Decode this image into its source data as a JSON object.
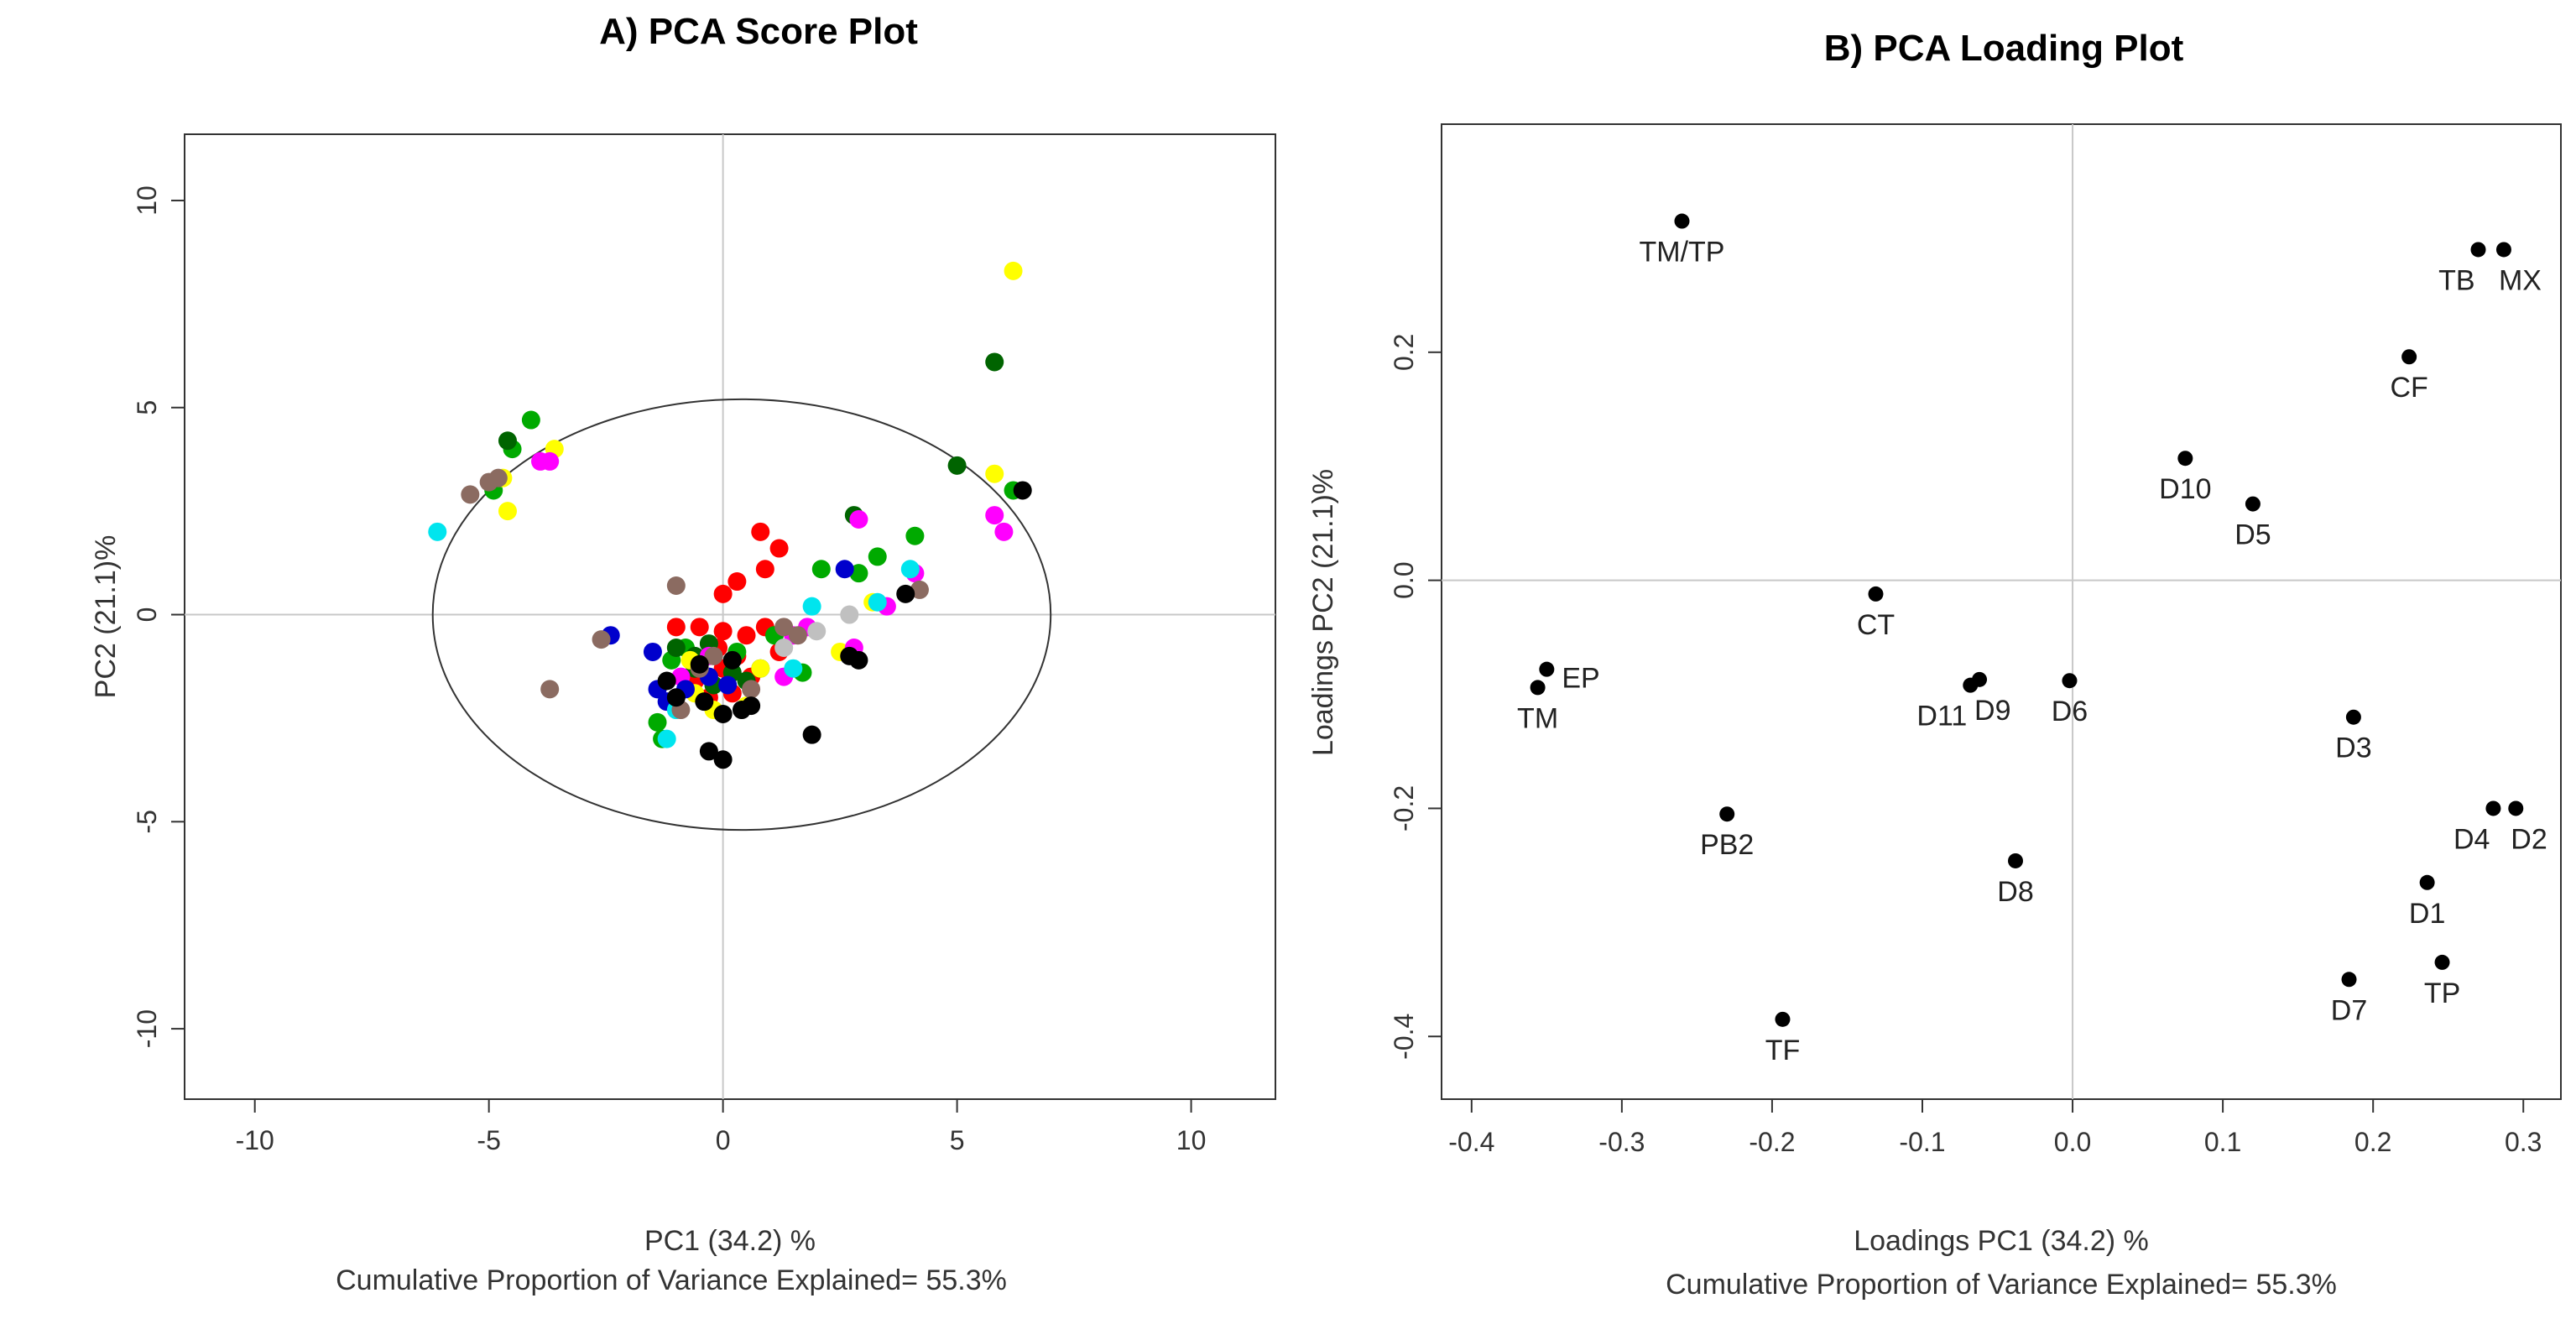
{
  "chart_data": [
    {
      "type": "scatter",
      "title": "A) PCA Score Plot",
      "xlabel": "PC1  (34.2) %",
      "ylabel": "PC2  (21.1)%",
      "caption": "Cumulative  Proportion  of Variance Explained=  55.3%",
      "xlim": [
        -11.5,
        11.8
      ],
      "ylim": [
        -11.7,
        11.6
      ],
      "xticks": [
        -10,
        -5,
        0,
        5,
        10
      ],
      "yticks": [
        -10,
        -5,
        0,
        5,
        10
      ],
      "xtick_labels": [
        "-10",
        "-5",
        "0",
        "5",
        "10"
      ],
      "ytick_labels": [
        "-10",
        "-5",
        "0",
        "5",
        "10"
      ],
      "reference_lines": {
        "x": 0,
        "y": 0
      },
      "ellipse": {
        "center": [
          0.4,
          0
        ],
        "rx": 6.6,
        "ry": 5.2
      },
      "series": [
        {
          "color": "#ff0000",
          "points": [
            [
              0.8,
              2.0
            ],
            [
              1.2,
              1.6
            ],
            [
              0.9,
              1.1
            ],
            [
              0.3,
              0.8
            ],
            [
              0.0,
              0.5
            ],
            [
              -1.0,
              -0.3
            ],
            [
              -0.5,
              -0.3
            ],
            [
              0.0,
              -0.4
            ],
            [
              0.5,
              -0.5
            ],
            [
              0.9,
              -0.3
            ],
            [
              1.2,
              -0.9
            ],
            [
              0.6,
              -1.5
            ],
            [
              0.2,
              -1.9
            ],
            [
              -0.3,
              -2.0
            ],
            [
              0.0,
              -1.3
            ],
            [
              -0.6,
              -1.6
            ],
            [
              -0.1,
              -0.8
            ],
            [
              0.3,
              -1.0
            ]
          ]
        },
        {
          "color": "#00aa00",
          "points": [
            [
              -4.5,
              4.0
            ],
            [
              -4.1,
              4.7
            ],
            [
              -4.9,
              3.0
            ],
            [
              6.2,
              3.0
            ],
            [
              4.1,
              1.9
            ],
            [
              3.3,
              1.4
            ],
            [
              2.9,
              1.0
            ],
            [
              2.1,
              1.1
            ],
            [
              1.1,
              -0.5
            ],
            [
              1.7,
              -1.4
            ],
            [
              -1.1,
              -1.1
            ],
            [
              -0.8,
              -0.8
            ],
            [
              -1.4,
              -2.6
            ],
            [
              -1.3,
              -3.0
            ],
            [
              0.3,
              -0.9
            ]
          ]
        },
        {
          "color": "#006400",
          "points": [
            [
              5.8,
              6.1
            ],
            [
              -4.6,
              4.2
            ],
            [
              5.0,
              3.6
            ],
            [
              2.8,
              2.4
            ],
            [
              -1.0,
              -0.8
            ],
            [
              -0.6,
              -1.0
            ],
            [
              -0.3,
              -0.7
            ],
            [
              0.2,
              -1.4
            ],
            [
              -0.2,
              -1.7
            ],
            [
              -0.6,
              -1.3
            ],
            [
              0.8,
              -1.3
            ],
            [
              0.5,
              -1.6
            ]
          ]
        },
        {
          "color": "#ffff00",
          "points": [
            [
              6.2,
              8.3
            ],
            [
              5.8,
              3.4
            ],
            [
              -3.6,
              4.0
            ],
            [
              -4.7,
              3.3
            ],
            [
              -4.6,
              2.5
            ],
            [
              3.2,
              0.3
            ],
            [
              -0.6,
              -1.9
            ],
            [
              -0.2,
              -2.3
            ],
            [
              0.5,
              -2.2
            ],
            [
              0.8,
              -1.3
            ],
            [
              -0.7,
              -1.1
            ],
            [
              2.5,
              -0.9
            ]
          ]
        },
        {
          "color": "#ff00ff",
          "points": [
            [
              -3.9,
              3.7
            ],
            [
              -3.7,
              3.7
            ],
            [
              5.8,
              2.4
            ],
            [
              6.0,
              2.0
            ],
            [
              2.9,
              2.3
            ],
            [
              4.1,
              1.0
            ],
            [
              3.5,
              0.2
            ],
            [
              2.8,
              -0.8
            ],
            [
              1.8,
              -0.3
            ],
            [
              1.5,
              -0.5
            ],
            [
              1.3,
              -1.5
            ],
            [
              -0.9,
              -1.5
            ],
            [
              -0.3,
              -1.0
            ]
          ]
        },
        {
          "color": "#0000cc",
          "points": [
            [
              -2.4,
              -0.5
            ],
            [
              -1.5,
              -0.9
            ],
            [
              -1.4,
              -1.8
            ],
            [
              -1.2,
              -2.1
            ],
            [
              2.6,
              1.1
            ],
            [
              -0.3,
              -1.5
            ],
            [
              0.1,
              -1.7
            ],
            [
              -0.8,
              -1.8
            ]
          ]
        },
        {
          "color": "#00e5ee",
          "points": [
            [
              -6.1,
              2.0
            ],
            [
              4.0,
              1.1
            ],
            [
              3.3,
              0.3
            ],
            [
              1.9,
              0.2
            ],
            [
              -1.2,
              -3.0
            ],
            [
              1.5,
              -1.3
            ],
            [
              -1.0,
              -2.3
            ]
          ]
        },
        {
          "color": "#8b6b61",
          "points": [
            [
              -5.4,
              2.9
            ],
            [
              -5.0,
              3.2
            ],
            [
              -4.8,
              3.3
            ],
            [
              -1.0,
              0.7
            ],
            [
              -2.6,
              -0.6
            ],
            [
              -3.7,
              -1.8
            ],
            [
              4.2,
              0.6
            ],
            [
              1.3,
              -0.3
            ],
            [
              -0.5,
              -1.3
            ],
            [
              -0.9,
              -2.3
            ],
            [
              0.6,
              -1.8
            ],
            [
              -0.2,
              -1.0
            ],
            [
              1.6,
              -0.5
            ]
          ]
        },
        {
          "color": "#c0c0c0",
          "points": [
            [
              2.7,
              0.0
            ],
            [
              2.0,
              -0.4
            ],
            [
              1.3,
              -0.8
            ]
          ]
        },
        {
          "color": "#000000",
          "points": [
            [
              6.4,
              3.0
            ],
            [
              3.9,
              0.5
            ],
            [
              2.9,
              -1.1
            ],
            [
              2.7,
              -1.0
            ],
            [
              1.9,
              -2.9
            ],
            [
              0.6,
              -2.2
            ],
            [
              0.4,
              -2.3
            ],
            [
              0.0,
              -2.4
            ],
            [
              -0.3,
              -3.3
            ],
            [
              0.0,
              -3.5
            ],
            [
              -0.4,
              -2.1
            ],
            [
              -0.5,
              -1.2
            ],
            [
              0.2,
              -1.1
            ],
            [
              -1.2,
              -1.6
            ],
            [
              -1.0,
              -2.0
            ]
          ]
        }
      ]
    },
    {
      "type": "scatter",
      "title": "B) PCA Loading Plot",
      "xlabel": "Loadings  PC1  (34.2) %",
      "ylabel": "Loadings  PC2  (21.1)%",
      "caption": "Cumulative  Proportion  of Variance Explained=  55.3%",
      "xlim": [
        -0.42,
        0.325
      ],
      "ylim": [
        -0.455,
        0.4
      ],
      "xticks": [
        -0.4,
        -0.3,
        -0.2,
        -0.1,
        0.0,
        0.1,
        0.2,
        0.3
      ],
      "yticks": [
        -0.4,
        -0.2,
        0.0,
        0.2
      ],
      "xtick_labels": [
        "-0.4",
        "-0.3",
        "-0.2",
        "-0.1",
        "0.0",
        "0.1",
        "0.2",
        "0.3"
      ],
      "ytick_labels": [
        "-0.4",
        "-0.2",
        "0.0",
        "0.2"
      ],
      "reference_lines": {
        "x": 0,
        "y": 0
      },
      "points": [
        {
          "label": "TM/TP",
          "x": -0.26,
          "y": 0.315,
          "anchor": "below"
        },
        {
          "label": "TB",
          "x": 0.27,
          "y": 0.29,
          "anchor": "below-left"
        },
        {
          "label": "MX",
          "x": 0.287,
          "y": 0.29,
          "anchor": "below-right"
        },
        {
          "label": "CF",
          "x": 0.224,
          "y": 0.196,
          "anchor": "below"
        },
        {
          "label": "D10",
          "x": 0.075,
          "y": 0.107,
          "anchor": "below"
        },
        {
          "label": "D5",
          "x": 0.12,
          "y": 0.067,
          "anchor": "below"
        },
        {
          "label": "CT",
          "x": -0.131,
          "y": -0.012,
          "anchor": "below"
        },
        {
          "label": "EP",
          "x": -0.35,
          "y": -0.078,
          "anchor": "right"
        },
        {
          "label": "TM",
          "x": -0.356,
          "y": -0.094,
          "anchor": "below"
        },
        {
          "label": "D11",
          "x": -0.068,
          "y": -0.092,
          "anchor": "below-left"
        },
        {
          "label": "D9",
          "x": -0.062,
          "y": -0.087,
          "anchor": "below-right"
        },
        {
          "label": "D6",
          "x": -0.002,
          "y": -0.088,
          "anchor": "below"
        },
        {
          "label": "D3",
          "x": 0.187,
          "y": -0.12,
          "anchor": "below"
        },
        {
          "label": "D4",
          "x": 0.28,
          "y": -0.2,
          "anchor": "below-left"
        },
        {
          "label": "D2",
          "x": 0.295,
          "y": -0.2,
          "anchor": "below-right"
        },
        {
          "label": "PB2",
          "x": -0.23,
          "y": -0.205,
          "anchor": "below"
        },
        {
          "label": "D8",
          "x": -0.038,
          "y": -0.246,
          "anchor": "below"
        },
        {
          "label": "D1",
          "x": 0.236,
          "y": -0.265,
          "anchor": "below"
        },
        {
          "label": "D7",
          "x": 0.184,
          "y": -0.35,
          "anchor": "below"
        },
        {
          "label": "TP",
          "x": 0.246,
          "y": -0.335,
          "anchor": "below"
        },
        {
          "label": "TF",
          "x": -0.193,
          "y": -0.385,
          "anchor": "below"
        }
      ]
    }
  ]
}
